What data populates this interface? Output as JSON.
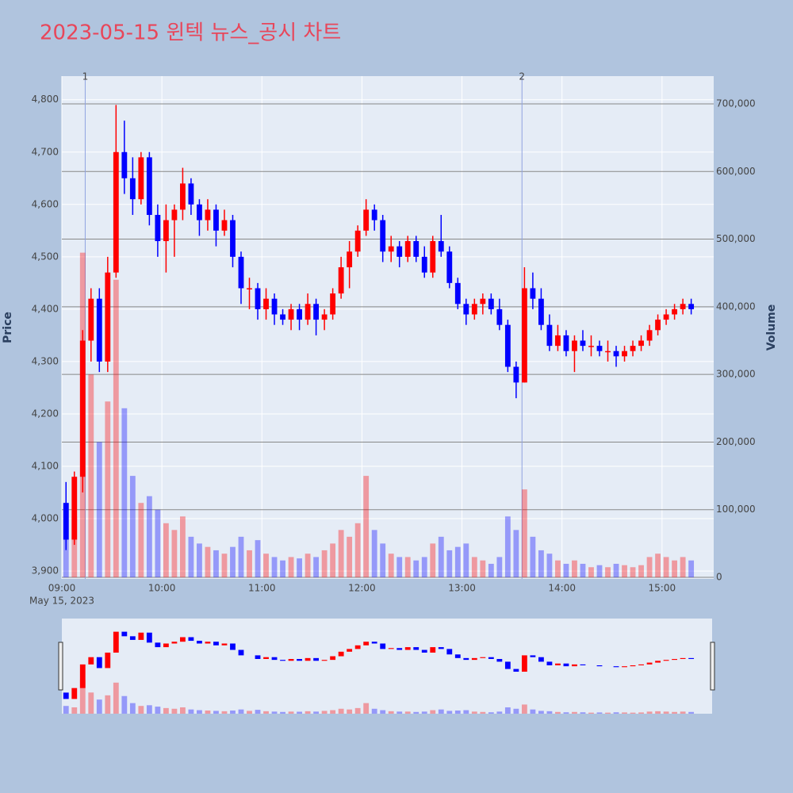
{
  "chart_data": {
    "type": "candlestick",
    "title": "2023-05-15 윈텍 뉴스_공시 차트",
    "ylabel": "Price",
    "y2label": "Volume",
    "date_label": "May 15, 2023",
    "increasing_color": "#ff0000",
    "decreasing_color": "#0000ff",
    "xlim": [
      "09:00",
      "15:31"
    ],
    "xticks": [
      "09:00",
      "10:00",
      "11:00",
      "12:00",
      "13:00",
      "14:00",
      "15:00"
    ],
    "ylim": [
      3885,
      4845
    ],
    "yticks": [
      {
        "value": 3900,
        "label": "3,900"
      },
      {
        "value": 4000,
        "label": "4,000"
      },
      {
        "value": 4100,
        "label": "4,100"
      },
      {
        "value": 4200,
        "label": "4,200"
      },
      {
        "value": 4300,
        "label": "4,300"
      },
      {
        "value": 4400,
        "label": "4,400"
      },
      {
        "value": 4500,
        "label": "4,500"
      },
      {
        "value": 4600,
        "label": "4,600"
      },
      {
        "value": 4700,
        "label": "4,700"
      },
      {
        "value": 4800,
        "label": "4,800"
      }
    ],
    "y2lim": [
      -2300,
      741000
    ],
    "y2ticks": [
      0,
      {
        "value": 100000,
        "label": "100,000"
      },
      {
        "value": 200000,
        "label": "200,000"
      },
      {
        "value": 300000,
        "label": "300,000"
      },
      {
        "value": 400000,
        "label": "400,000"
      },
      {
        "value": 500000,
        "label": "500,000"
      },
      {
        "value": 600000,
        "label": "600,000"
      },
      {
        "value": 700000,
        "label": "700,000"
      }
    ],
    "markers": [
      {
        "x": "09:14",
        "label": "1"
      },
      {
        "x": "13:36",
        "label": "2"
      }
    ],
    "x": [
      "09:00",
      "09:05",
      "09:10",
      "09:15",
      "09:20",
      "09:25",
      "09:30",
      "09:35",
      "09:40",
      "09:45",
      "09:50",
      "09:55",
      "10:00",
      "10:05",
      "10:10",
      "10:15",
      "10:20",
      "10:25",
      "10:30",
      "10:35",
      "10:40",
      "10:45",
      "10:50",
      "10:55",
      "11:00",
      "11:05",
      "11:10",
      "11:15",
      "11:20",
      "11:25",
      "11:30",
      "11:35",
      "11:40",
      "11:45",
      "11:50",
      "11:55",
      "12:00",
      "12:05",
      "12:10",
      "12:15",
      "12:20",
      "12:25",
      "12:30",
      "12:35",
      "12:40",
      "12:45",
      "12:50",
      "12:55",
      "13:00",
      "13:05",
      "13:10",
      "13:15",
      "13:20",
      "13:25",
      "13:30",
      "13:35",
      "13:40",
      "13:45",
      "13:50",
      "13:55",
      "14:00",
      "14:05",
      "14:10",
      "14:15",
      "14:20",
      "14:25",
      "14:30",
      "14:35",
      "14:40",
      "14:45",
      "14:50",
      "14:55",
      "15:00",
      "15:05",
      "15:10",
      "15:15"
    ],
    "open": [
      4030,
      3960,
      4080,
      4340,
      4420,
      4300,
      4470,
      4700,
      4650,
      4610,
      4690,
      4580,
      4530,
      4570,
      4590,
      4640,
      4600,
      4570,
      4590,
      4550,
      4570,
      4500,
      4440,
      4440,
      4400,
      4420,
      4390,
      4380,
      4400,
      4380,
      4410,
      4380,
      4390,
      4430,
      4480,
      4510,
      4550,
      4590,
      4570,
      4510,
      4520,
      4500,
      4530,
      4500,
      4470,
      4530,
      4510,
      4450,
      4410,
      4390,
      4410,
      4420,
      4400,
      4370,
      4290,
      4260,
      4440,
      4420,
      4370,
      4330,
      4350,
      4320,
      4340,
      4330,
      4330,
      4320,
      4320,
      4310,
      4320,
      4330,
      4340,
      4360,
      4380,
      4390,
      4400,
      4410
    ],
    "high": [
      4070,
      4090,
      4360,
      4440,
      4440,
      4500,
      4790,
      4760,
      4690,
      4700,
      4700,
      4600,
      4600,
      4600,
      4670,
      4650,
      4610,
      4610,
      4600,
      4590,
      4580,
      4510,
      4460,
      4450,
      4440,
      4430,
      4400,
      4410,
      4410,
      4430,
      4420,
      4400,
      4440,
      4500,
      4530,
      4560,
      4610,
      4600,
      4580,
      4540,
      4530,
      4540,
      4540,
      4520,
      4540,
      4580,
      4520,
      4460,
      4420,
      4420,
      4430,
      4430,
      4420,
      4380,
      4300,
      4480,
      4470,
      4440,
      4390,
      4370,
      4360,
      4350,
      4360,
      4350,
      4340,
      4340,
      4330,
      4330,
      4340,
      4350,
      4370,
      4390,
      4400,
      4410,
      4420,
      4420
    ],
    "low": [
      3940,
      3950,
      4050,
      4300,
      4280,
      4280,
      4460,
      4620,
      4580,
      4600,
      4560,
      4500,
      4470,
      4500,
      4570,
      4580,
      4540,
      4550,
      4520,
      4540,
      4480,
      4410,
      4400,
      4380,
      4380,
      4370,
      4370,
      4360,
      4360,
      4370,
      4350,
      4360,
      4380,
      4420,
      4440,
      4500,
      4540,
      4550,
      4490,
      4490,
      4480,
      4490,
      4490,
      4460,
      4460,
      4500,
      4440,
      4400,
      4370,
      4380,
      4390,
      4390,
      4360,
      4280,
      4230,
      4260,
      4400,
      4360,
      4320,
      4320,
      4310,
      4280,
      4320,
      4310,
      4310,
      4300,
      4290,
      4300,
      4310,
      4320,
      4330,
      4350,
      4370,
      4380,
      4390,
      4390
    ],
    "close": [
      3960,
      4080,
      4340,
      4420,
      4300,
      4470,
      4700,
      4650,
      4610,
      4690,
      4580,
      4530,
      4570,
      4590,
      4640,
      4600,
      4570,
      4590,
      4550,
      4570,
      4500,
      4440,
      4440,
      4400,
      4420,
      4390,
      4380,
      4400,
      4380,
      4410,
      4380,
      4390,
      4430,
      4480,
      4510,
      4550,
      4590,
      4570,
      4510,
      4520,
      4500,
      4530,
      4500,
      4470,
      4530,
      4510,
      4450,
      4410,
      4390,
      4410,
      4420,
      4400,
      4370,
      4290,
      4260,
      4440,
      4420,
      4370,
      4330,
      4350,
      4320,
      4340,
      4330,
      4330,
      4320,
      4320,
      4310,
      4320,
      4330,
      4340,
      4360,
      4380,
      4390,
      4400,
      4410,
      4400
    ],
    "volume": [
      110000,
      90000,
      480000,
      300000,
      200000,
      260000,
      440000,
      250000,
      150000,
      110000,
      120000,
      100000,
      80000,
      70000,
      90000,
      60000,
      50000,
      45000,
      40000,
      35000,
      45000,
      60000,
      40000,
      55000,
      35000,
      30000,
      25000,
      30000,
      28000,
      35000,
      30000,
      40000,
      50000,
      70000,
      60000,
      80000,
      150000,
      70000,
      50000,
      35000,
      30000,
      30000,
      25000,
      30000,
      50000,
      60000,
      40000,
      45000,
      50000,
      30000,
      25000,
      20000,
      30000,
      90000,
      70000,
      130000,
      60000,
      40000,
      35000,
      25000,
      20000,
      25000,
      20000,
      15000,
      18000,
      15000,
      20000,
      18000,
      15000,
      18000,
      30000,
      35000,
      30000,
      25000,
      30000,
      25000
    ]
  }
}
